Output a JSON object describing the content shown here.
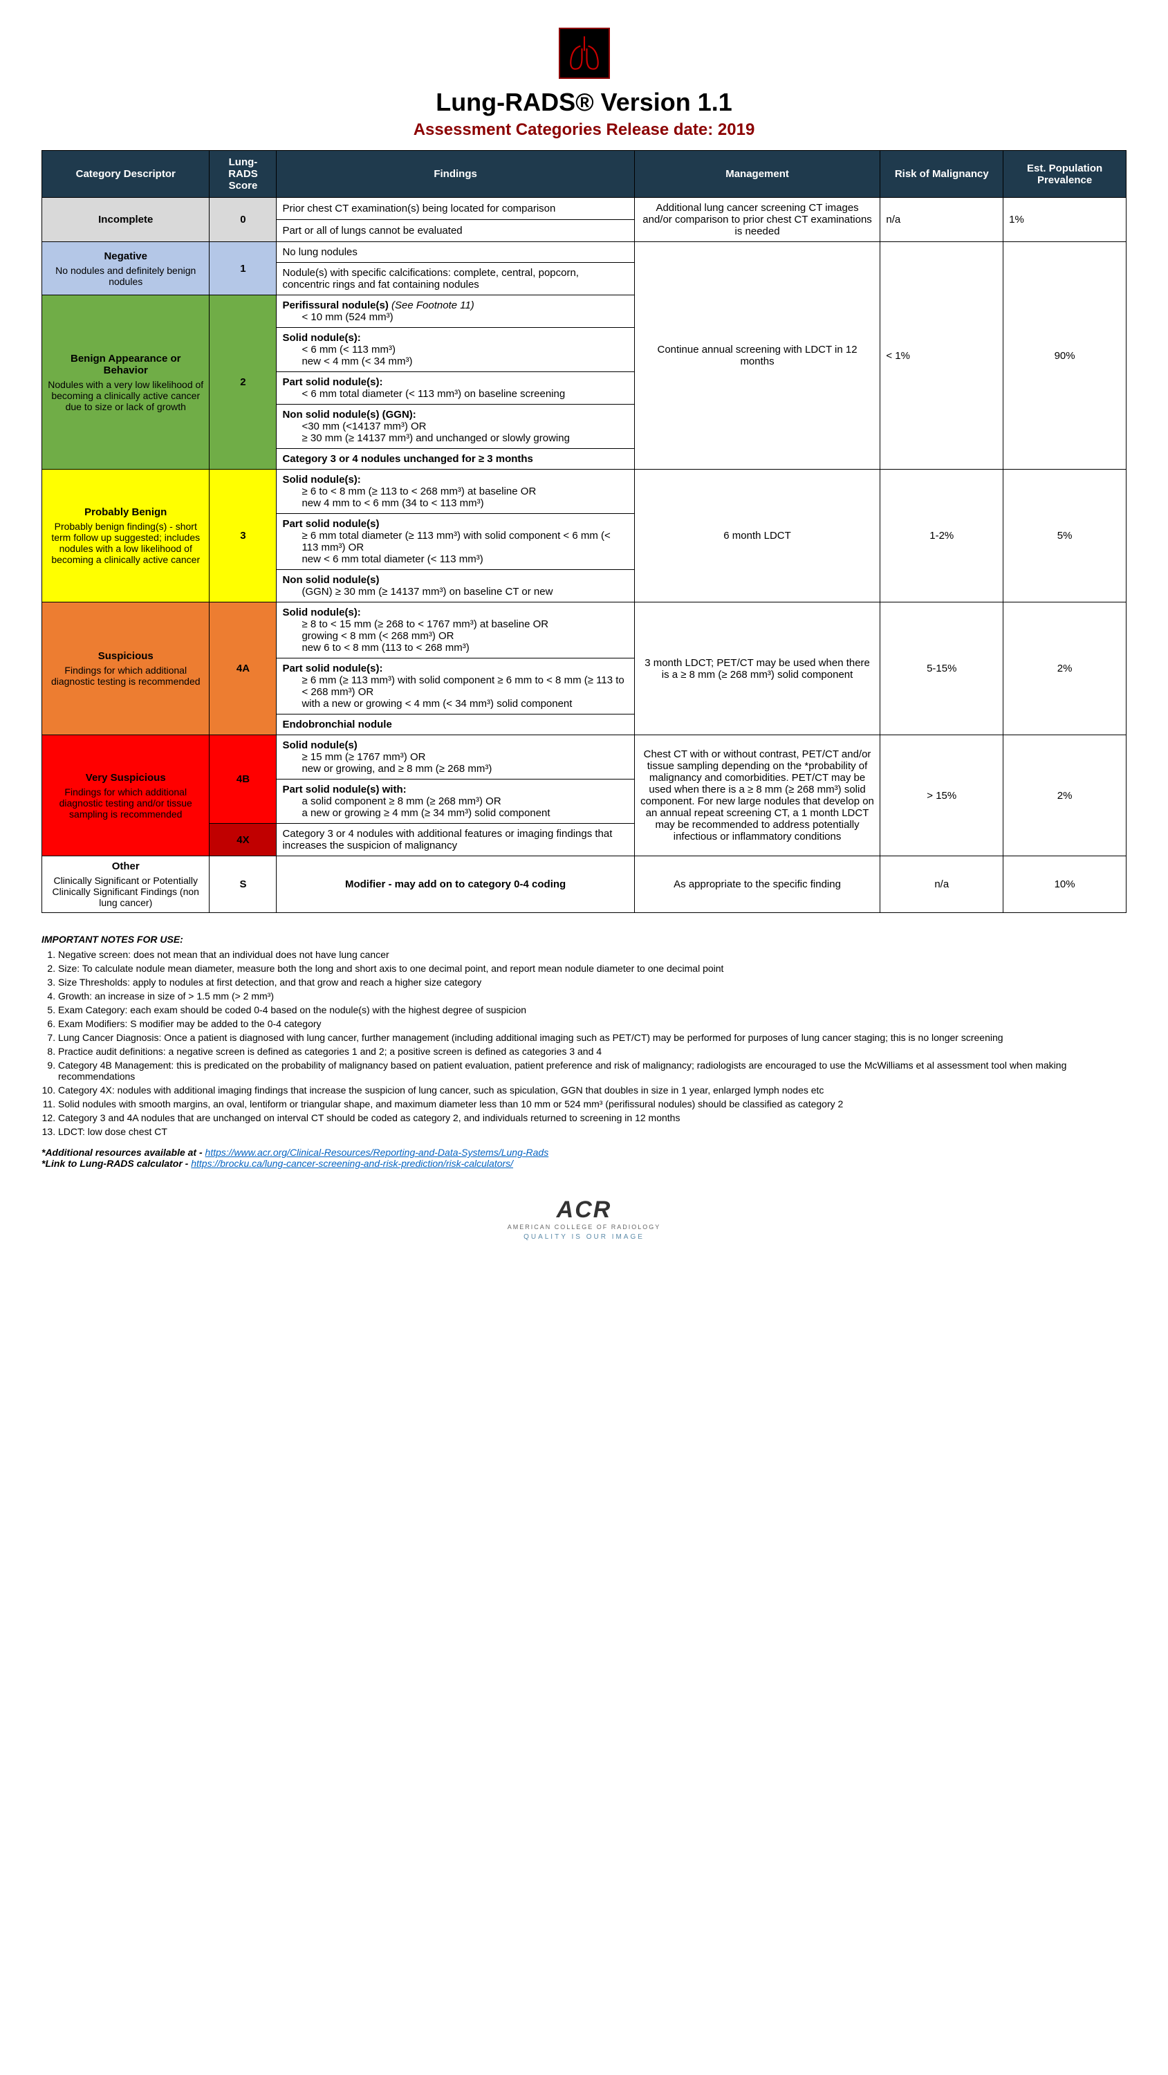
{
  "header": {
    "title": "Lung-RADS® Version 1.1",
    "subtitle": "Assessment Categories Release date: 2019"
  },
  "columns": {
    "c1": "Category Descriptor",
    "c2": "Lung-RADS Score",
    "c3": "Findings",
    "c4": "Management",
    "c5": "Risk of Malignancy",
    "c6": "Est. Population Prevalence"
  },
  "rows": {
    "incomplete": {
      "desc_head": "Incomplete",
      "score": "0",
      "find1": "Prior chest CT examination(s) being located for comparison",
      "find2": "Part or all of lungs cannot be evaluated",
      "mgmt": "Additional lung cancer screening CT images and/or comparison to prior chest CT examinations is needed",
      "risk": "n/a",
      "prev": "1%"
    },
    "negative": {
      "desc_head": "Negative",
      "desc_sub": "No nodules and definitely benign nodules",
      "score": "1",
      "find1": "No lung nodules",
      "find2": "Nodule(s) with specific calcifications: complete, central, popcorn, concentric rings and fat containing nodules"
    },
    "benign": {
      "desc_head": "Benign Appearance or Behavior",
      "desc_sub": "Nodules with a very low likelihood of becoming a clinically active cancer due to size or lack of growth",
      "score": "2",
      "find1_head": "Perifissural nodule(s)",
      "find1_note": "(See Footnote 11)",
      "find1_body": "< 10 mm (524 mm³)",
      "find2_head": "Solid nodule(s):",
      "find2_l1": "< 6 mm (< 113 mm³)",
      "find2_l2": "new < 4 mm (< 34 mm³)",
      "find3_head": "Part solid nodule(s):",
      "find3_l1": "< 6 mm total diameter (< 113 mm³) on baseline screening",
      "find4_head": "Non solid nodule(s) (GGN):",
      "find4_l1": "<30 mm (<14137 mm³) OR",
      "find4_l2": "≥ 30 mm (≥ 14137 mm³) and unchanged or slowly growing",
      "find5": "Category 3 or 4 nodules unchanged for ≥ 3 months",
      "mgmt": "Continue annual screening with LDCT in 12 months",
      "risk": "< 1%",
      "prev": "90%"
    },
    "probBenign": {
      "desc_head": "Probably Benign",
      "desc_sub": "Probably benign finding(s) - short term follow up suggested; includes nodules with a low likelihood of becoming a clinically active cancer",
      "score": "3",
      "find1_head": "Solid nodule(s):",
      "find1_l1": "≥ 6 to < 8 mm (≥ 113 to < 268 mm³) at baseline OR",
      "find1_l2": "new 4 mm to < 6 mm (34 to < 113 mm³)",
      "find2_head": "Part solid nodule(s)",
      "find2_l1": "≥ 6 mm total diameter (≥ 113 mm³) with solid component < 6 mm (< 113 mm³) OR",
      "find2_l2": "new < 6 mm total diameter (< 113 mm³)",
      "find3_head": "Non solid nodule(s)",
      "find3_l1": "(GGN) ≥ 30 mm (≥ 14137 mm³) on baseline CT or new",
      "mgmt": "6 month LDCT",
      "risk": "1-2%",
      "prev": "5%"
    },
    "suspicious": {
      "desc_head": "Suspicious",
      "desc_sub": "Findings for which additional diagnostic testing is recommended",
      "score": "4A",
      "find1_head": "Solid nodule(s):",
      "find1_l1": "≥ 8 to < 15 mm (≥ 268 to < 1767 mm³)  at baseline OR",
      "find1_l2": "growing < 8 mm (< 268 mm³) OR",
      "find1_l3": "new 6 to < 8 mm (113 to < 268 mm³)",
      "find2_head": "Part solid nodule(s):",
      "find2_l1": "≥ 6 mm (≥ 113 mm³) with solid component ≥ 6 mm to < 8 mm (≥ 113 to < 268 mm³)  OR",
      "find2_l2": "with a new or growing < 4 mm (< 34 mm³) solid component",
      "find3": "Endobronchial nodule",
      "mgmt": "3 month LDCT; PET/CT may be used when there is a ≥ 8 mm (≥ 268 mm³) solid component",
      "risk": "5-15%",
      "prev": "2%"
    },
    "verySusp": {
      "desc_head": "Very Suspicious",
      "desc_sub": "Findings for which additional diagnostic testing and/or tissue sampling is recommended",
      "score4b": "4B",
      "score4x": "4X",
      "find1_head": "Solid nodule(s)",
      "find1_l1": "≥ 15 mm (≥ 1767 mm³) OR",
      "find1_l2": "new or growing, and ≥ 8 mm (≥ 268 mm³)",
      "find2_head": "Part solid nodule(s) with:",
      "find2_l1": "a solid component ≥ 8 mm (≥ 268 mm³) OR",
      "find2_l2": "a new or growing ≥ 4 mm (≥ 34 mm³) solid component",
      "find3": "Category 3 or 4 nodules with additional features or imaging findings that increases the suspicion of malignancy",
      "mgmt": "Chest CT with or without contrast, PET/CT and/or tissue sampling depending on the *probability of malignancy and comorbidities. PET/CT may be used when there is a ≥ 8 mm (≥ 268 mm³) solid component. For new large nodules that develop on an annual repeat screening CT, a 1 month LDCT may be recommended to address potentially infectious or inflammatory conditions",
      "risk": "> 15%",
      "prev": "2%"
    },
    "other": {
      "desc_head": "Other",
      "desc_sub": "Clinically Significant or Potentially Clinically Significant Findings (non lung cancer)",
      "score": "S",
      "find": "Modifier - may add on to category 0-4 coding",
      "mgmt": "As appropriate to the specific finding",
      "risk": "n/a",
      "prev": "10%"
    }
  },
  "notes": {
    "title": "IMPORTANT NOTES FOR USE:",
    "items": [
      "Negative screen: does not mean that an individual does not have lung cancer",
      "Size: To calculate nodule mean diameter, measure both the long and short axis to one decimal point, and report mean nodule diameter to one decimal point",
      "Size Thresholds: apply to nodules at first detection, and that grow and reach a higher size category",
      "Growth: an increase in size of > 1.5 mm (> 2 mm³)",
      "Exam Category: each exam should be coded 0-4 based on the nodule(s) with the highest degree of suspicion",
      "Exam Modifiers: S modifier may be added to the 0-4 category",
      "Lung Cancer Diagnosis: Once a patient is diagnosed with lung cancer, further management (including additional imaging such as PET/CT) may be performed for purposes of lung cancer staging; this is no longer screening",
      "Practice audit definitions: a negative screen is defined as categories 1 and 2; a positive screen is defined as categories 3 and 4",
      "Category 4B Management: this is predicated on the probability of malignancy based on patient evaluation, patient preference and risk of malignancy; radiologists are encouraged to use the McWilliams et al assessment tool when making recommendations",
      "Category 4X: nodules with additional imaging findings that increase the suspicion of lung cancer, such as spiculation, GGN that doubles in size in 1 year, enlarged lymph nodes  etc",
      "Solid nodules with smooth margins, an oval, lentiform or triangular shape, and maximum diameter less than 10 mm or 524 mm³ (perifissural nodules) should be classified as category 2",
      "Category 3 and 4A nodules that are unchanged on interval CT should be coded as category 2, and individuals returned to screening in 12 months",
      "LDCT: low dose chest CT"
    ],
    "res1_label": "*Additional resources available at - ",
    "res1_link": "https://www.acr.org/Clinical-Resources/Reporting-and-Data-Systems/Lung-Rads",
    "res2_label": "*Link to Lung-RADS calculator - ",
    "res2_link": "https://brocku.ca/lung-cancer-screening-and-risk-prediction/risk-calculators/"
  },
  "footer": {
    "acr": "ACR",
    "sub1": "AMERICAN COLLEGE OF RADIOLOGY",
    "sub2": "QUALITY IS OUR IMAGE"
  }
}
